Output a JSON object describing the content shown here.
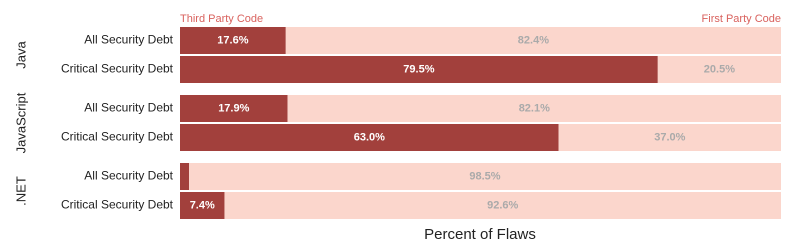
{
  "chart_data": {
    "type": "stacked-bar-horizontal",
    "x_label": "Percent of Flaws",
    "xlim": [
      0,
      100
    ],
    "groups": [
      "Java",
      "JavaScript",
      ".NET"
    ],
    "categories": [
      "All Security Debt",
      "Critical Security Debt",
      "All Security Debt",
      "Critical Security Debt",
      "All Security Debt",
      "Critical Security Debt"
    ],
    "series": [
      {
        "name": "Third Party Code",
        "color": "#a2403c",
        "values": [
          17.6,
          79.5,
          17.9,
          63.0,
          1.5,
          7.4
        ],
        "value_labels": [
          "17.6%",
          "79.5%",
          "17.9%",
          "63.0%",
          null,
          "7.4%"
        ]
      },
      {
        "name": "First Party Code",
        "color": "#fbd6cc",
        "values": [
          82.4,
          20.5,
          82.1,
          37.0,
          98.5,
          92.6
        ],
        "value_labels": [
          "82.4%",
          "20.5%",
          "82.1%",
          "37.0%",
          "98.5%",
          "92.6%"
        ]
      }
    ]
  }
}
